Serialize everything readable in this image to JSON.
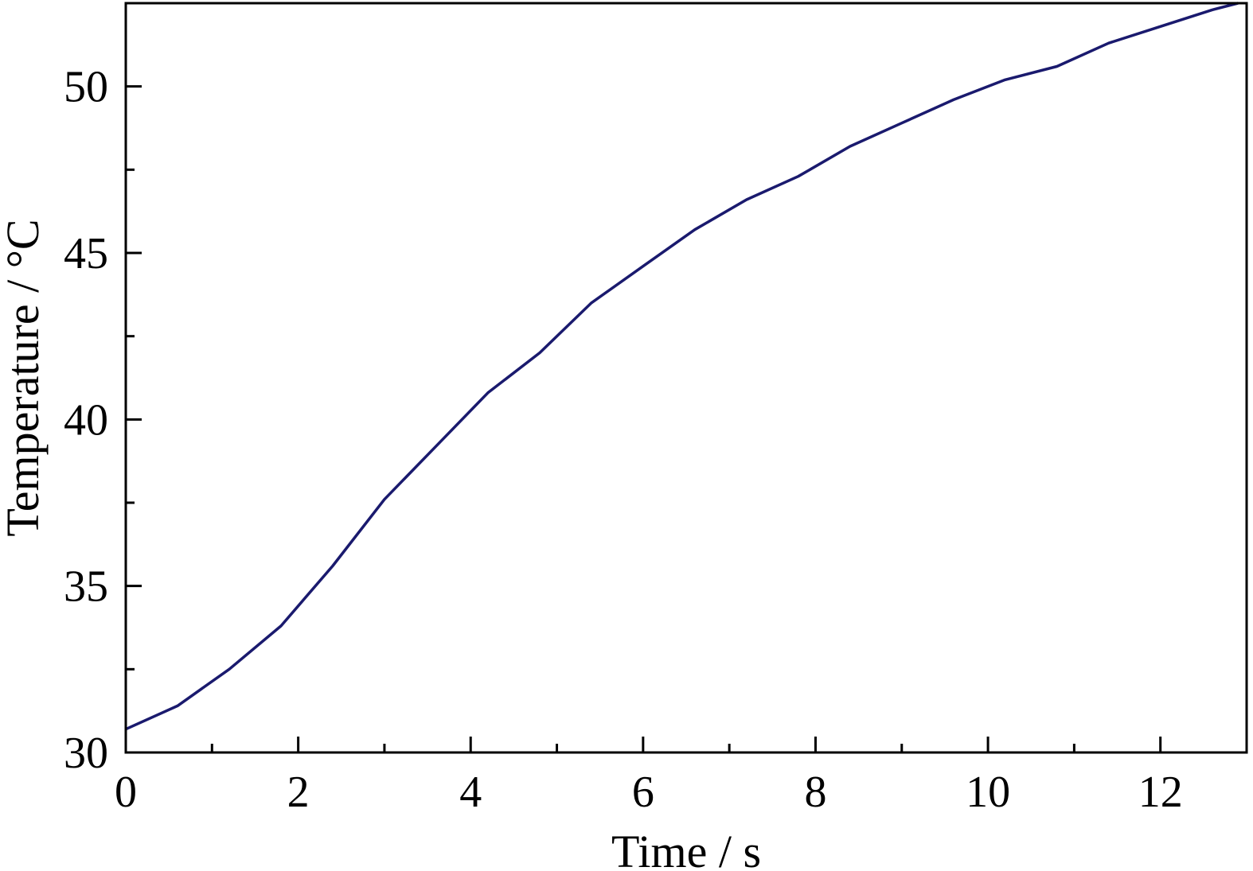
{
  "chart_data": {
    "type": "line",
    "xlabel": "Time / s",
    "ylabel": "Temperature / °C",
    "xlim": [
      0,
      13
    ],
    "ylim": [
      30,
      52.5
    ],
    "x_ticks": [
      0,
      2,
      4,
      6,
      8,
      10,
      12
    ],
    "x_tick_labels": [
      "0",
      "2",
      "4",
      "6",
      "8",
      "10",
      "12"
    ],
    "x_minor_ticks": [
      1,
      3,
      5,
      7,
      9,
      11
    ],
    "y_ticks": [
      30,
      35,
      40,
      45,
      50
    ],
    "y_tick_labels": [
      "30",
      "35",
      "40",
      "45",
      "50"
    ],
    "y_minor_ticks": [
      32.5,
      37.5,
      42.5,
      47.5,
      52.5
    ],
    "grid": false,
    "series": [
      {
        "color": "#1a1a6e",
        "x": [
          0,
          0.6,
          1.2,
          1.8,
          2.4,
          3.0,
          3.6,
          4.2,
          4.8,
          5.4,
          6.0,
          6.6,
          7.2,
          7.8,
          8.4,
          9.0,
          9.6,
          10.2,
          10.8,
          11.4,
          12.0,
          12.6,
          12.9
        ],
        "y": [
          30.7,
          31.4,
          32.5,
          33.8,
          35.6,
          37.6,
          39.2,
          40.8,
          42.0,
          43.5,
          44.6,
          45.7,
          46.6,
          47.3,
          48.2,
          48.9,
          49.6,
          50.2,
          50.6,
          51.3,
          51.8,
          52.3,
          52.5
        ]
      }
    ]
  }
}
